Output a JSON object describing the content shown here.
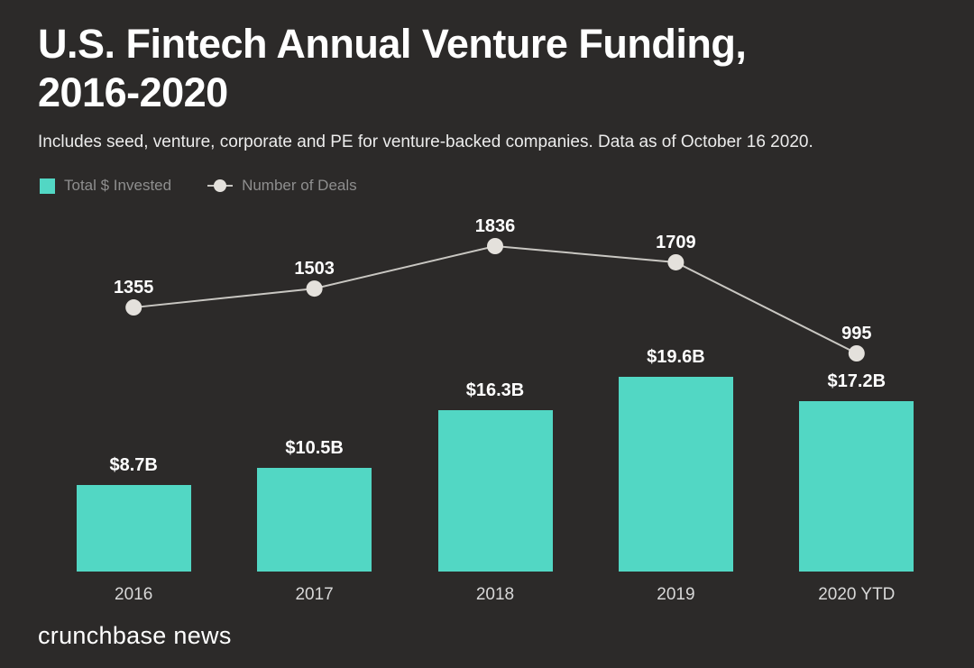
{
  "colors": {
    "background": "#2c2a29",
    "bar": "#52d7c4",
    "line": "#c9c7c2",
    "dot": "#e4e1dc",
    "title_text": "#ffffff",
    "subtitle_text": "#ececec",
    "legend_text": "#8e8e8e",
    "axis_text": "#d8d8d8",
    "label_text": "#ffffff"
  },
  "header": {
    "title_line1": "U.S. Fintech Annual Venture Funding,",
    "title_line2": "2016-2020",
    "subtitle": "Includes seed, venture, corporate and PE for venture-backed companies. Data as of October 16 2020."
  },
  "legend": {
    "items": [
      {
        "label": "Total $ Invested",
        "marker": "bar-swatch"
      },
      {
        "label": "Number of Deals",
        "marker": "line-dot"
      }
    ]
  },
  "chart_data": {
    "type": "bar",
    "title": "U.S. Fintech Annual Venture Funding, 2016-2020",
    "subtitle": "Includes seed, venture, corporate and PE for venture-backed companies. Data as of October 16 2020.",
    "categories": [
      "2016",
      "2017",
      "2018",
      "2019",
      "2020 YTD"
    ],
    "series": [
      {
        "name": "Total $ Invested",
        "type": "bar",
        "unit": "billions USD",
        "values": [
          8.7,
          10.5,
          16.3,
          19.6,
          17.2
        ],
        "labels": [
          "$8.7B",
          "$10.5B",
          "$16.3B",
          "$19.6B",
          "$17.2B"
        ]
      },
      {
        "name": "Number of Deals",
        "type": "line",
        "unit": "deals",
        "values": [
          1355,
          1503,
          1836,
          1709,
          995
        ],
        "labels": [
          "1355",
          "1503",
          "1836",
          "1709",
          "995"
        ]
      }
    ],
    "xlabel": "",
    "ylabel": "",
    "ylim_bar_billions": [
      0,
      22
    ],
    "ylim_line_deals": [
      0,
      2000
    ],
    "grid": false,
    "legend_position": "top-left",
    "data_labels": true
  },
  "footer": {
    "brand": "crunchbase news"
  }
}
